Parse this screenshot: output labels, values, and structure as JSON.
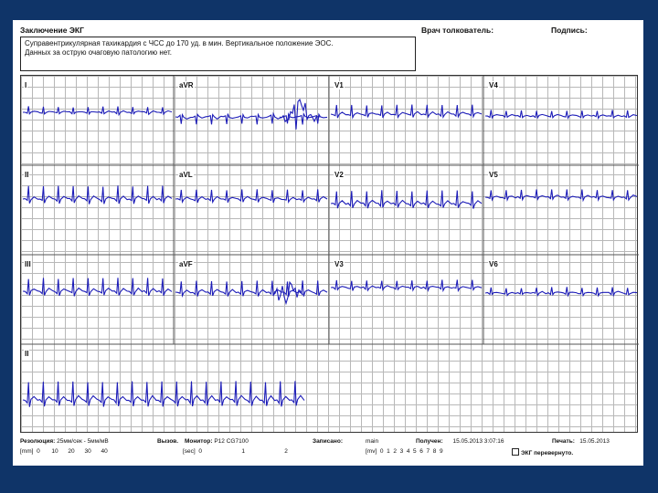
{
  "header": {
    "conclusion_title": "Заключение ЭКГ",
    "interpreter_label": "Врач толкователь:",
    "signature_label": "Подпись:"
  },
  "conclusion": {
    "line1": "Суправентрикулярная тахикардия с ЧСС до 170  уд. в мин. Вертикальное положение ЭОС.",
    "line2": "Данных за острую очаговую патологию нет."
  },
  "leads": {
    "I": "I",
    "aVR": "aVR",
    "V1": "V1",
    "V4": "V4",
    "II": "II",
    "aVL": "aVL",
    "V2": "V2",
    "V5": "V5",
    "III": "III",
    "aVF": "aVF",
    "V3": "V3",
    "V6": "V6",
    "rhythm": "II"
  },
  "trace_color": "#1d1db8",
  "footer": {
    "resolution_label": "Резолюция:",
    "resolution_value": "25мм/сек - 5мм/мВ",
    "call_label": "Вызов.",
    "monitor_label": "Монитор:",
    "monitor_value": "P12 CG7100",
    "recorded_label": "Записано:",
    "recorded_value": "main",
    "received_label": "Получен:",
    "received_value": "15.05.2013 3:07:16",
    "print_label": "Печать:",
    "print_value": "15.05.2013",
    "mm_unit": "[mm]",
    "mm_ticks": "0       10      20      30      40",
    "sec_unit": "[sec]",
    "sec_ticks": "0                        1                        2",
    "mv_unit": "[mv]",
    "mv_ticks": "0  1  2  3  4  5  6  7  8  9",
    "inverted_label": "ЭКГ перевернуто."
  }
}
